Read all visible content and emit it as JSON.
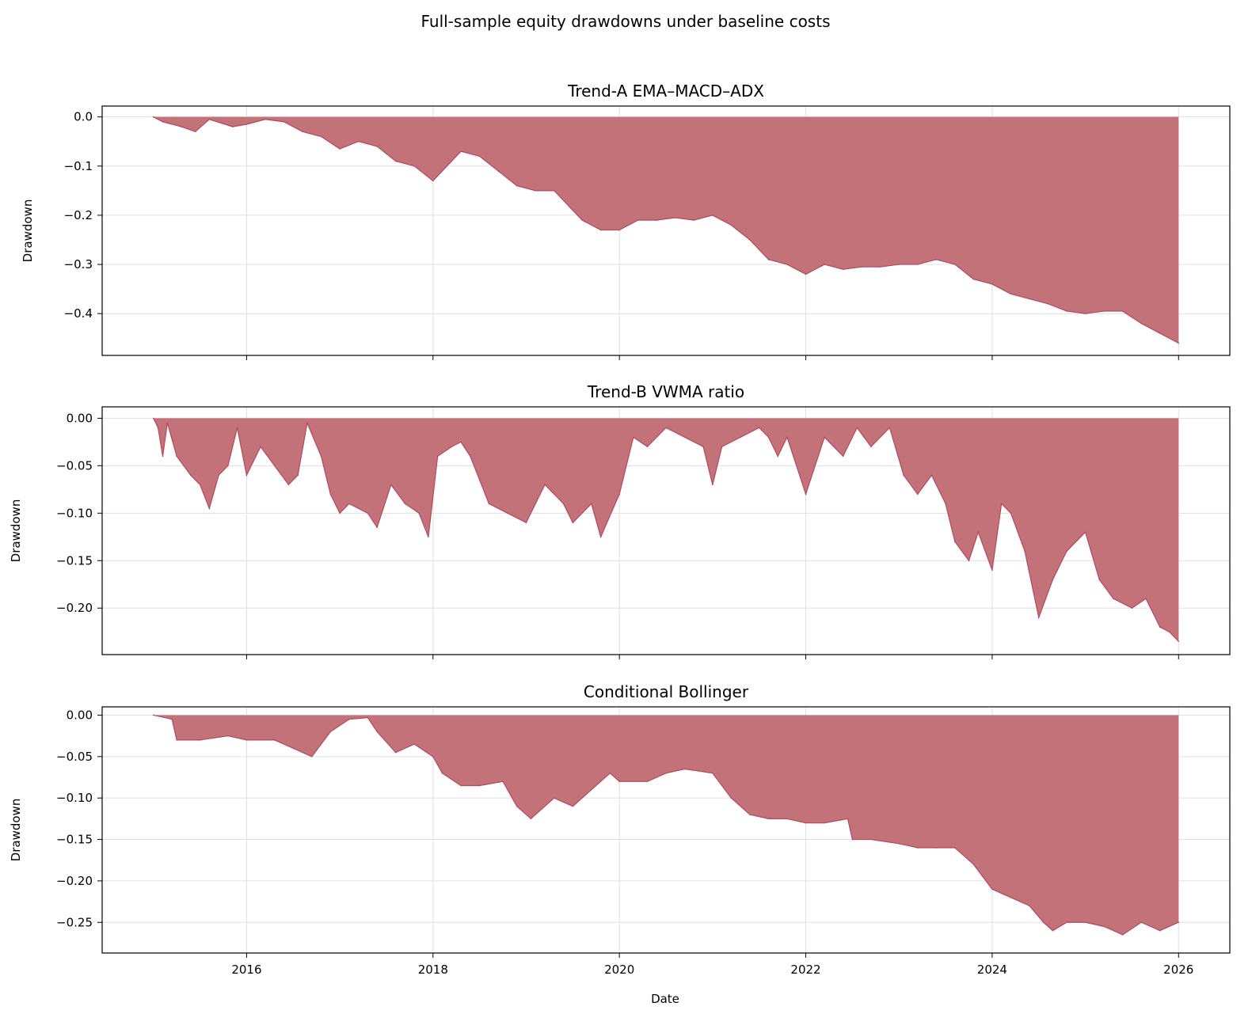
{
  "figure": {
    "suptitle": "Full-sample equity drawdowns under baseline costs",
    "xlabel": "Date",
    "fill_color": "#c4727a",
    "line_color": "#b34a58",
    "grid_color": "#e0e0e0"
  },
  "chart_data": [
    {
      "type": "area",
      "title": "Trend-A EMA–MACD–ADX",
      "ylabel": "Drawdown",
      "xlim": [
        2014.45,
        2026.55
      ],
      "ylim": [
        -0.485,
        0.022
      ],
      "yticks": [
        0.0,
        -0.1,
        -0.2,
        -0.3,
        -0.4
      ],
      "ytick_labels": [
        "0.0",
        "−0.1",
        "−0.2",
        "−0.3",
        "−0.4"
      ],
      "xticks": [
        2016,
        2018,
        2020,
        2022,
        2024,
        2026
      ],
      "xtick_labels": [
        "2016",
        "2018",
        "2020",
        "2022",
        "2024",
        "2026"
      ],
      "show_xtick_labels": false,
      "grid": true,
      "x": [
        2015.0,
        2015.1,
        2015.3,
        2015.45,
        2015.6,
        2015.85,
        2016.0,
        2016.2,
        2016.4,
        2016.6,
        2016.8,
        2017.0,
        2017.2,
        2017.4,
        2017.6,
        2017.8,
        2018.0,
        2018.2,
        2018.3,
        2018.5,
        2018.7,
        2018.9,
        2019.1,
        2019.3,
        2019.5,
        2019.6,
        2019.8,
        2020.0,
        2020.2,
        2020.4,
        2020.6,
        2020.8,
        2021.0,
        2021.2,
        2021.4,
        2021.6,
        2021.8,
        2022.0,
        2022.2,
        2022.4,
        2022.6,
        2022.8,
        2023.0,
        2023.2,
        2023.4,
        2023.6,
        2023.8,
        2024.0,
        2024.2,
        2024.4,
        2024.6,
        2024.8,
        2025.0,
        2025.2,
        2025.4,
        2025.6,
        2025.8,
        2026.0
      ],
      "values": [
        0.0,
        -0.01,
        -0.02,
        -0.03,
        -0.005,
        -0.02,
        -0.015,
        -0.005,
        -0.01,
        -0.03,
        -0.04,
        -0.065,
        -0.05,
        -0.06,
        -0.09,
        -0.1,
        -0.13,
        -0.09,
        -0.07,
        -0.08,
        -0.11,
        -0.14,
        -0.15,
        -0.15,
        -0.19,
        -0.21,
        -0.23,
        -0.23,
        -0.21,
        -0.21,
        -0.205,
        -0.21,
        -0.2,
        -0.22,
        -0.25,
        -0.29,
        -0.3,
        -0.32,
        -0.3,
        -0.31,
        -0.305,
        -0.305,
        -0.3,
        -0.3,
        -0.29,
        -0.3,
        -0.33,
        -0.34,
        -0.36,
        -0.37,
        -0.38,
        -0.395,
        -0.4,
        -0.395,
        -0.395,
        -0.42,
        -0.44,
        -0.46
      ]
    },
    {
      "type": "area",
      "title": "Trend-B VWMA ratio",
      "ylabel": "Drawdown",
      "xlim": [
        2014.45,
        2026.55
      ],
      "ylim": [
        -0.249,
        0.012
      ],
      "yticks": [
        0.0,
        -0.05,
        -0.1,
        -0.15,
        -0.2
      ],
      "ytick_labels": [
        "0.00",
        "−0.05",
        "−0.10",
        "−0.15",
        "−0.20"
      ],
      "xticks": [
        2016,
        2018,
        2020,
        2022,
        2024,
        2026
      ],
      "xtick_labels": [
        "2016",
        "2018",
        "2020",
        "2022",
        "2024",
        "2026"
      ],
      "show_xtick_labels": false,
      "grid": true,
      "x": [
        2015.0,
        2015.05,
        2015.1,
        2015.15,
        2015.25,
        2015.4,
        2015.5,
        2015.6,
        2015.7,
        2015.8,
        2015.9,
        2016.0,
        2016.15,
        2016.3,
        2016.45,
        2016.55,
        2016.65,
        2016.8,
        2016.9,
        2017.0,
        2017.1,
        2017.3,
        2017.4,
        2017.55,
        2017.7,
        2017.85,
        2017.95,
        2018.05,
        2018.2,
        2018.3,
        2018.4,
        2018.6,
        2018.8,
        2019.0,
        2019.2,
        2019.4,
        2019.5,
        2019.7,
        2019.8,
        2020.0,
        2020.15,
        2020.3,
        2020.5,
        2020.7,
        2020.9,
        2021.0,
        2021.1,
        2021.3,
        2021.5,
        2021.6,
        2021.7,
        2021.8,
        2022.0,
        2022.2,
        2022.4,
        2022.55,
        2022.7,
        2022.9,
        2023.05,
        2023.2,
        2023.35,
        2023.5,
        2023.6,
        2023.75,
        2023.85,
        2024.0,
        2024.1,
        2024.2,
        2024.35,
        2024.5,
        2024.65,
        2024.8,
        2025.0,
        2025.15,
        2025.3,
        2025.5,
        2025.65,
        2025.8,
        2025.9,
        2026.0
      ],
      "values": [
        0.0,
        -0.01,
        -0.04,
        -0.005,
        -0.04,
        -0.06,
        -0.07,
        -0.095,
        -0.06,
        -0.05,
        -0.01,
        -0.06,
        -0.03,
        -0.05,
        -0.07,
        -0.06,
        -0.005,
        -0.04,
        -0.08,
        -0.1,
        -0.09,
        -0.1,
        -0.115,
        -0.07,
        -0.09,
        -0.1,
        -0.125,
        -0.04,
        -0.03,
        -0.025,
        -0.04,
        -0.09,
        -0.1,
        -0.11,
        -0.07,
        -0.09,
        -0.11,
        -0.09,
        -0.125,
        -0.08,
        -0.02,
        -0.03,
        -0.01,
        -0.02,
        -0.03,
        -0.07,
        -0.03,
        -0.02,
        -0.01,
        -0.02,
        -0.04,
        -0.02,
        -0.08,
        -0.02,
        -0.04,
        -0.01,
        -0.03,
        -0.01,
        -0.06,
        -0.08,
        -0.06,
        -0.09,
        -0.13,
        -0.15,
        -0.12,
        -0.16,
        -0.09,
        -0.1,
        -0.14,
        -0.21,
        -0.17,
        -0.14,
        -0.12,
        -0.17,
        -0.19,
        -0.2,
        -0.19,
        -0.22,
        -0.225,
        -0.235
      ]
    },
    {
      "type": "area",
      "title": "Conditional Bollinger",
      "ylabel": "Drawdown",
      "xlim": [
        2014.45,
        2026.55
      ],
      "ylim": [
        -0.287,
        0.01
      ],
      "yticks": [
        0.0,
        -0.05,
        -0.1,
        -0.15,
        -0.2,
        -0.25
      ],
      "ytick_labels": [
        "0.00",
        "−0.05",
        "−0.10",
        "−0.15",
        "−0.20",
        "−0.25"
      ],
      "xticks": [
        2016,
        2018,
        2020,
        2022,
        2024,
        2026
      ],
      "xtick_labels": [
        "2016",
        "2018",
        "2020",
        "2022",
        "2024",
        "2026"
      ],
      "show_xtick_labels": true,
      "grid": true,
      "x": [
        2015.0,
        2015.2,
        2015.25,
        2015.5,
        2015.8,
        2016.0,
        2016.3,
        2016.5,
        2016.7,
        2016.9,
        2017.1,
        2017.3,
        2017.4,
        2017.6,
        2017.8,
        2018.0,
        2018.1,
        2018.3,
        2018.5,
        2018.75,
        2018.9,
        2019.05,
        2019.3,
        2019.5,
        2019.7,
        2019.9,
        2020.0,
        2020.3,
        2020.5,
        2020.7,
        2021.0,
        2021.2,
        2021.4,
        2021.6,
        2021.8,
        2022.0,
        2022.2,
        2022.45,
        2022.5,
        2022.7,
        2023.0,
        2023.2,
        2023.4,
        2023.6,
        2023.8,
        2024.0,
        2024.2,
        2024.4,
        2024.55,
        2024.65,
        2024.8,
        2025.0,
        2025.2,
        2025.4,
        2025.6,
        2025.8,
        2026.0
      ],
      "values": [
        0.0,
        -0.005,
        -0.03,
        -0.03,
        -0.025,
        -0.03,
        -0.03,
        -0.04,
        -0.05,
        -0.02,
        -0.005,
        -0.003,
        -0.02,
        -0.045,
        -0.035,
        -0.05,
        -0.07,
        -0.085,
        -0.085,
        -0.08,
        -0.11,
        -0.125,
        -0.1,
        -0.11,
        -0.09,
        -0.07,
        -0.08,
        -0.08,
        -0.07,
        -0.065,
        -0.07,
        -0.1,
        -0.12,
        -0.125,
        -0.125,
        -0.13,
        -0.13,
        -0.125,
        -0.15,
        -0.15,
        -0.155,
        -0.16,
        -0.16,
        -0.16,
        -0.18,
        -0.21,
        -0.22,
        -0.23,
        -0.25,
        -0.26,
        -0.25,
        -0.25,
        -0.255,
        -0.265,
        -0.25,
        -0.26,
        -0.25
      ]
    }
  ]
}
